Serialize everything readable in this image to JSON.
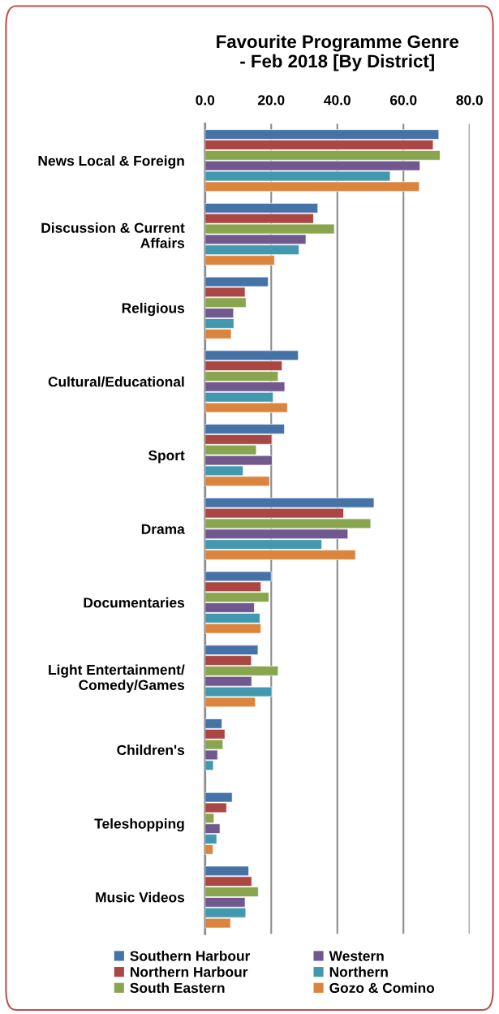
{
  "chart_data": {
    "type": "bar",
    "orientation": "horizontal",
    "title": "Favourite Programme Genre\n- Feb 2018 [By District]",
    "categories": [
      "News Local & Foreign",
      "Discussion & Current\nAffairs",
      "Religious",
      "Cultural/Educational",
      "Sport",
      "Drama",
      "Documentaries",
      "Light Entertainment/\nComedy/Games",
      "Children's",
      "Teleshopping",
      "Music Videos"
    ],
    "series": [
      {
        "name": "Southern Harbour",
        "color": "#4572a7",
        "values": [
          70.7,
          34.1,
          19.1,
          28.2,
          24.0,
          51.1,
          20.0,
          16.0,
          5.1,
          8.2,
          13.2
        ]
      },
      {
        "name": "Northern Harbour",
        "color": "#aa4643",
        "values": [
          69.0,
          32.8,
          12.1,
          23.3,
          20.2,
          41.9,
          16.9,
          14.0,
          6.0,
          6.5,
          14.1
        ]
      },
      {
        "name": "South Eastern",
        "color": "#89a54e",
        "values": [
          71.1,
          39.1,
          12.4,
          22.1,
          15.5,
          50.1,
          19.3,
          22.1,
          5.4,
          2.7,
          16.1
        ]
      },
      {
        "name": "Western",
        "color": "#71588f",
        "values": [
          65.0,
          30.5,
          8.6,
          24.1,
          20.3,
          43.2,
          14.9,
          14.1,
          3.8,
          4.5,
          12.1
        ]
      },
      {
        "name": "Northern",
        "color": "#4198af",
        "values": [
          56.0,
          28.4,
          8.7,
          20.6,
          11.5,
          35.3,
          16.6,
          20.2,
          2.5,
          3.5,
          12.3
        ]
      },
      {
        "name": "Gozo & Comino",
        "color": "#db843d",
        "values": [
          64.8,
          21.0,
          7.9,
          24.9,
          19.5,
          45.5,
          16.9,
          15.2,
          null,
          2.4,
          7.7
        ]
      }
    ],
    "xlim": [
      0,
      80
    ],
    "xticks": [
      {
        "value": 0,
        "label": "0.0"
      },
      {
        "value": 20,
        "label": "20.0"
      },
      {
        "value": 40,
        "label": "40.0"
      },
      {
        "value": 60,
        "label": "60.0"
      },
      {
        "value": 80,
        "label": "80.0"
      }
    ],
    "grid": "x",
    "legend": "bottom"
  }
}
